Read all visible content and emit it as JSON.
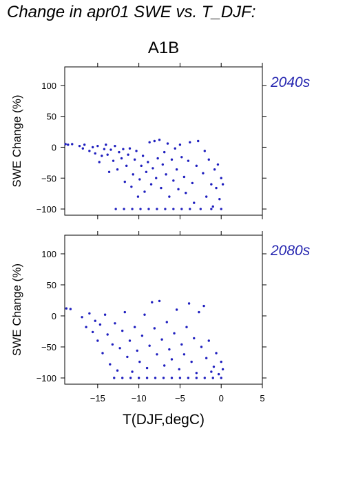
{
  "title": "Change in apr01 SWE vs. T_DJF:",
  "subtitle": "A1B",
  "colors": {
    "points": "#1f1fbf",
    "label": "#2626b0",
    "frame": "#000000"
  },
  "chart_data": [
    {
      "type": "scatter",
      "panel_label": "2040s",
      "xlabel": "",
      "ylabel": "SWE Change (%)",
      "xlim": [
        -19,
        5
      ],
      "ylim": [
        -110,
        130
      ],
      "xticks": [],
      "yticks": [
        "−100",
        "−50",
        "0",
        "50",
        "100"
      ],
      "ytick_values": [
        -100,
        -50,
        0,
        50,
        100
      ],
      "series": [
        {
          "points": [
            [
              -18.6,
              4
            ],
            [
              -18.9,
              5
            ],
            [
              -18.1,
              5
            ],
            [
              -17.2,
              2
            ],
            [
              -16.8,
              -2
            ],
            [
              -16.6,
              4
            ],
            [
              -16.0,
              -6
            ],
            [
              -15.6,
              0
            ],
            [
              -15.3,
              -10
            ],
            [
              -15.0,
              2
            ],
            [
              -14.8,
              -24
            ],
            [
              -14.5,
              -14
            ],
            [
              -14.2,
              -3
            ],
            [
              -14.0,
              4
            ],
            [
              -13.8,
              -12
            ],
            [
              -13.6,
              -40
            ],
            [
              -13.4,
              -4
            ],
            [
              -13.1,
              -22
            ],
            [
              -12.9,
              2
            ],
            [
              -12.6,
              -36
            ],
            [
              -12.4,
              -8
            ],
            [
              -12.1,
              -18
            ],
            [
              -11.9,
              -3
            ],
            [
              -11.7,
              -56
            ],
            [
              -11.5,
              -30
            ],
            [
              -11.3,
              -12
            ],
            [
              -11.1,
              -2
            ],
            [
              -10.9,
              -64
            ],
            [
              -10.7,
              -44
            ],
            [
              -10.5,
              -20
            ],
            [
              -10.3,
              -6
            ],
            [
              -10.1,
              -80
            ],
            [
              -9.9,
              -52
            ],
            [
              -9.7,
              -30
            ],
            [
              -9.5,
              -14
            ],
            [
              -9.3,
              -72
            ],
            [
              -9.1,
              -40
            ],
            [
              -8.9,
              -24
            ],
            [
              -8.7,
              8
            ],
            [
              -8.5,
              -60
            ],
            [
              -8.3,
              -34
            ],
            [
              -8.1,
              10
            ],
            [
              -7.9,
              -50
            ],
            [
              -7.7,
              -18
            ],
            [
              -7.5,
              12
            ],
            [
              -7.3,
              -66
            ],
            [
              -7.1,
              -28
            ],
            [
              -6.9,
              -8
            ],
            [
              -6.7,
              -44
            ],
            [
              -6.5,
              6
            ],
            [
              -6.3,
              -80
            ],
            [
              -6.0,
              -20
            ],
            [
              -5.8,
              -54
            ],
            [
              -5.6,
              -2
            ],
            [
              -5.4,
              -36
            ],
            [
              -5.2,
              -68
            ],
            [
              -5.0,
              4
            ],
            [
              -4.8,
              -16
            ],
            [
              -4.5,
              -48
            ],
            [
              -4.3,
              -74
            ],
            [
              -4.0,
              -22
            ],
            [
              -3.8,
              8
            ],
            [
              -3.5,
              -58
            ],
            [
              -3.3,
              -90
            ],
            [
              -3.0,
              -30
            ],
            [
              -2.8,
              10
            ],
            [
              -2.5,
              -100
            ],
            [
              -2.2,
              -42
            ],
            [
              -2.0,
              -6
            ],
            [
              -1.8,
              -80
            ],
            [
              -1.5,
              -20
            ],
            [
              -1.2,
              -60
            ],
            [
              -1.0,
              -96
            ],
            [
              -0.8,
              -36
            ],
            [
              -0.6,
              -66
            ],
            [
              -0.4,
              -28
            ],
            [
              -0.2,
              -84
            ],
            [
              0.0,
              -50
            ],
            [
              0.2,
              -60
            ],
            [
              -12.8,
              -100
            ],
            [
              -11.8,
              -100
            ],
            [
              -10.8,
              -100
            ],
            [
              -9.8,
              -100
            ],
            [
              -8.8,
              -100
            ],
            [
              -7.8,
              -100
            ],
            [
              -6.8,
              -100
            ],
            [
              -5.8,
              -100
            ],
            [
              -4.8,
              -100
            ],
            [
              -3.8,
              -100
            ],
            [
              -1.2,
              -100
            ],
            [
              0.0,
              -100
            ]
          ]
        }
      ]
    },
    {
      "type": "scatter",
      "panel_label": "2080s",
      "xlabel": "T(DJF,degC)",
      "ylabel": "SWE Change (%)",
      "xlim": [
        -19,
        5
      ],
      "ylim": [
        -110,
        130
      ],
      "xticks": [
        "−15",
        "−10",
        "−5",
        "0",
        "5"
      ],
      "xtick_values": [
        -15,
        -10,
        -5,
        0,
        5
      ],
      "yticks": [
        "−100",
        "−50",
        "0",
        "50",
        "100"
      ],
      "ytick_values": [
        -100,
        -50,
        0,
        50,
        100
      ],
      "series": [
        {
          "points": [
            [
              -18.8,
              12
            ],
            [
              -18.3,
              11
            ],
            [
              -16.9,
              -2
            ],
            [
              -16.4,
              -18
            ],
            [
              -16.0,
              4
            ],
            [
              -15.6,
              -26
            ],
            [
              -15.3,
              -8
            ],
            [
              -15.0,
              -40
            ],
            [
              -14.7,
              -14
            ],
            [
              -14.4,
              -60
            ],
            [
              -14.1,
              2
            ],
            [
              -13.8,
              -30
            ],
            [
              -13.5,
              -78
            ],
            [
              -13.2,
              -46
            ],
            [
              -12.9,
              -12
            ],
            [
              -12.6,
              -88
            ],
            [
              -12.3,
              -52
            ],
            [
              -12.0,
              -24
            ],
            [
              -11.7,
              6
            ],
            [
              -11.4,
              -66
            ],
            [
              -11.1,
              -40
            ],
            [
              -10.8,
              -90
            ],
            [
              -10.5,
              -18
            ],
            [
              -10.2,
              -56
            ],
            [
              -9.9,
              -74
            ],
            [
              -9.6,
              -32
            ],
            [
              -9.3,
              2
            ],
            [
              -9.0,
              -84
            ],
            [
              -8.7,
              -48
            ],
            [
              -8.4,
              22
            ],
            [
              -8.1,
              -20
            ],
            [
              -7.8,
              -62
            ],
            [
              -7.5,
              24
            ],
            [
              -7.2,
              -38
            ],
            [
              -6.9,
              -80
            ],
            [
              -6.6,
              -10
            ],
            [
              -6.3,
              -54
            ],
            [
              -6.0,
              -70
            ],
            [
              -5.7,
              -28
            ],
            [
              -5.4,
              10
            ],
            [
              -5.1,
              -86
            ],
            [
              -4.8,
              -46
            ],
            [
              -4.5,
              -62
            ],
            [
              -4.2,
              -18
            ],
            [
              -3.9,
              20
            ],
            [
              -3.6,
              -74
            ],
            [
              -3.3,
              -36
            ],
            [
              -3.0,
              -92
            ],
            [
              -2.7,
              6
            ],
            [
              -2.4,
              -50
            ],
            [
              -2.1,
              16
            ],
            [
              -1.8,
              -68
            ],
            [
              -1.5,
              -40
            ],
            [
              -1.2,
              -90
            ],
            [
              -0.9,
              -82
            ],
            [
              -0.6,
              -60
            ],
            [
              -0.3,
              -94
            ],
            [
              0.0,
              -74
            ],
            [
              0.2,
              -86
            ],
            [
              -13.0,
              -100
            ],
            [
              -12.0,
              -100
            ],
            [
              -11.0,
              -100
            ],
            [
              -10.0,
              -100
            ],
            [
              -9.0,
              -100
            ],
            [
              -8.0,
              -100
            ],
            [
              -7.0,
              -100
            ],
            [
              -6.0,
              -100
            ],
            [
              -5.0,
              -100
            ],
            [
              -4.0,
              -100
            ],
            [
              -3.0,
              -100
            ],
            [
              -2.0,
              -100
            ],
            [
              -1.0,
              -100
            ],
            [
              0.0,
              -100
            ]
          ]
        }
      ]
    }
  ]
}
